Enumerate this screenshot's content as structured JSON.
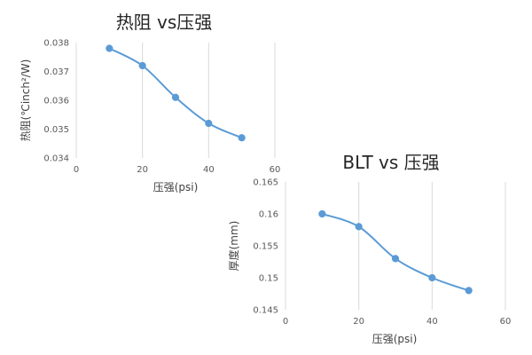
{
  "colors": {
    "series": "#5b9bd5",
    "grid": "#d9d9d9",
    "text": "#262626"
  },
  "chart_data": [
    {
      "type": "line",
      "title": "热阻 vs压强",
      "xlabel": "压强(psi)",
      "ylabel": "热阻(℃inch²/W)",
      "xlim": [
        0,
        60
      ],
      "ylim": [
        0.034,
        0.038
      ],
      "x_ticks": [
        "0",
        "20",
        "40",
        "60"
      ],
      "y_ticks": [
        "0.034",
        "0.035",
        "0.036",
        "0.037",
        "0.038"
      ],
      "grid": "vertical",
      "smooth": true,
      "series": [
        {
          "x": [
            10,
            20,
            30,
            40,
            50
          ],
          "y": [
            0.0378,
            0.0372,
            0.0361,
            0.0352,
            0.0347
          ]
        }
      ]
    },
    {
      "type": "line",
      "title": "BLT vs 压强",
      "xlabel": "压强(psi)",
      "ylabel": "厚度(mm)",
      "xlim": [
        0,
        60
      ],
      "ylim": [
        0.145,
        0.165
      ],
      "x_ticks": [
        "0",
        "20",
        "40",
        "60"
      ],
      "y_ticks": [
        "0.145",
        "0.15",
        "0.155",
        "0.16",
        "0.165"
      ],
      "grid": "vertical",
      "smooth": true,
      "series": [
        {
          "x": [
            10,
            20,
            30,
            40,
            50
          ],
          "y": [
            0.16,
            0.158,
            0.153,
            0.15,
            0.148
          ]
        }
      ]
    }
  ]
}
